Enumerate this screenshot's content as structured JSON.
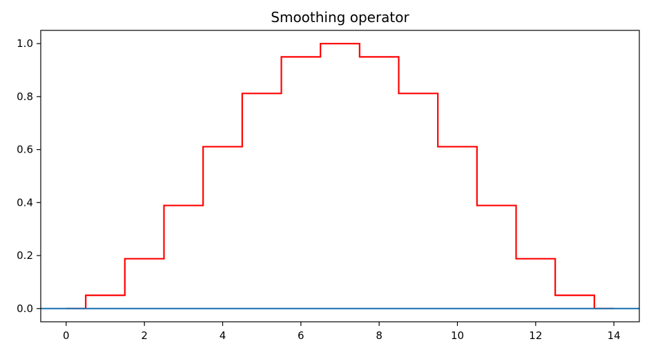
{
  "chart_data": {
    "type": "line",
    "title": "Smoothing operator",
    "xlabel": "",
    "ylabel": "",
    "xlim": [
      -0.65,
      14.65
    ],
    "ylim": [
      -0.05,
      1.05
    ],
    "x_ticks": [
      0,
      2,
      4,
      6,
      8,
      10,
      12,
      14
    ],
    "x_tick_labels": [
      "0",
      "2",
      "4",
      "6",
      "8",
      "10",
      "12",
      "14"
    ],
    "y_ticks": [
      0.0,
      0.2,
      0.4,
      0.6,
      0.8,
      1.0
    ],
    "y_tick_labels": [
      "0.0",
      "0.2",
      "0.4",
      "0.6",
      "0.8",
      "1.0"
    ],
    "grid": false,
    "legend": "none",
    "series": [
      {
        "style": "step-mid",
        "color": "#ff0000",
        "x": [
          0,
          1,
          2,
          3,
          4,
          5,
          6,
          7,
          8,
          9,
          10,
          11,
          12,
          13,
          14
        ],
        "values": [
          0,
          0.05,
          0.188,
          0.389,
          0.611,
          0.812,
          0.95,
          1.0,
          0.95,
          0.812,
          0.611,
          0.389,
          0.188,
          0.05,
          0
        ]
      },
      {
        "style": "horizontal-line",
        "color": "#1f77b4",
        "values": [
          0
        ]
      }
    ]
  }
}
